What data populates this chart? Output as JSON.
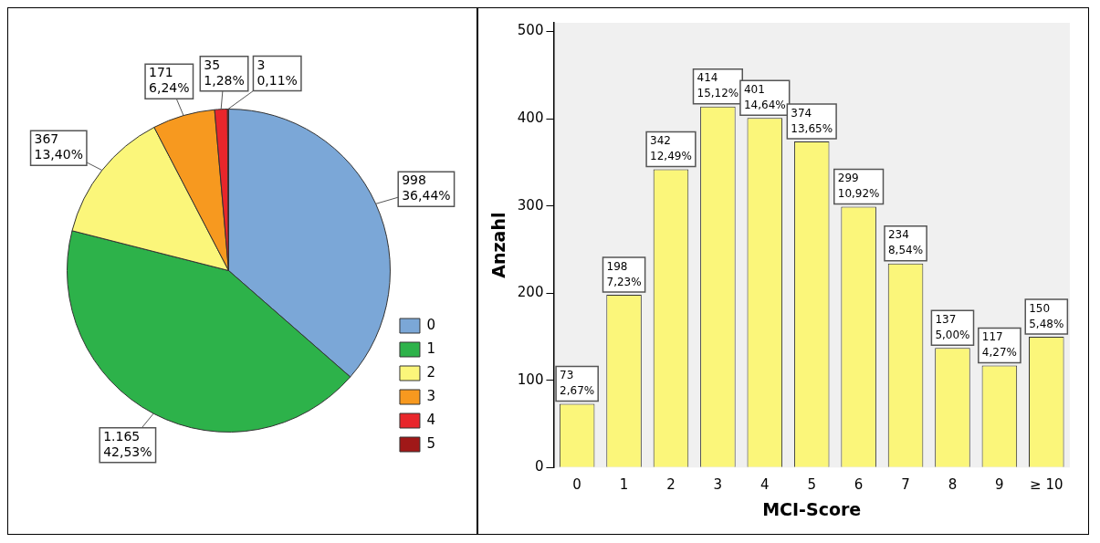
{
  "chart_data": [
    {
      "type": "pie",
      "categories": [
        "0",
        "1",
        "2",
        "3",
        "4",
        "5"
      ],
      "values": [
        998,
        1165,
        367,
        171,
        35,
        3
      ],
      "colors": [
        "#7ba7d7",
        "#2db24a",
        "#fbf67a",
        "#f7991f",
        "#e8262b",
        "#a01818"
      ],
      "value_labels": [
        "998\n36,44%",
        "1.165\n42,53%",
        "367\n13,40%",
        "171\n6,24%",
        "35\n1,28%",
        "3\n0,11%"
      ],
      "legend": "bottom right"
    },
    {
      "type": "bar",
      "categories": [
        "0",
        "1",
        "2",
        "3",
        "4",
        "5",
        "6",
        "7",
        "8",
        "9",
        "≥ 10"
      ],
      "values": [
        73,
        198,
        342,
        414,
        401,
        374,
        299,
        234,
        137,
        117,
        150
      ],
      "color": "#fbf67a",
      "value_labels": [
        "73\n2,67%",
        "198\n7,23%",
        "342\n12,49%",
        "414\n15,12%",
        "401\n14,64%",
        "374\n13,65%",
        "299\n10,92%",
        "234\n8,54%",
        "137\n5,00%",
        "117\n4,27%",
        "150\n5,48%"
      ],
      "xlabel": "MCI-Score",
      "ylabel": "Anzahl",
      "ylim": [
        0,
        510
      ],
      "yticks": [
        0,
        100,
        200,
        300,
        400,
        500
      ],
      "grid": false,
      "legend": false
    }
  ]
}
